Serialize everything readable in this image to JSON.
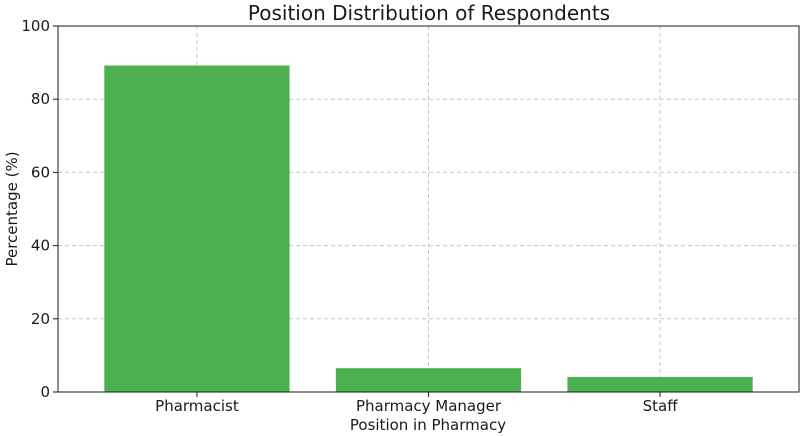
{
  "chart_data": {
    "type": "bar",
    "title": "Position Distribution of Respondents",
    "xlabel": "Position in Pharmacy",
    "ylabel": "Percentage (%)",
    "categories": [
      "Pharmacist",
      "Pharmacy Manager",
      "Staff"
    ],
    "values": [
      89.2,
      6.5,
      4.1
    ],
    "ylim": [
      0,
      100
    ],
    "yticks": [
      "0",
      "20",
      "40",
      "60",
      "80",
      "100"
    ],
    "grid": true,
    "bar_color": "#4caf50"
  }
}
